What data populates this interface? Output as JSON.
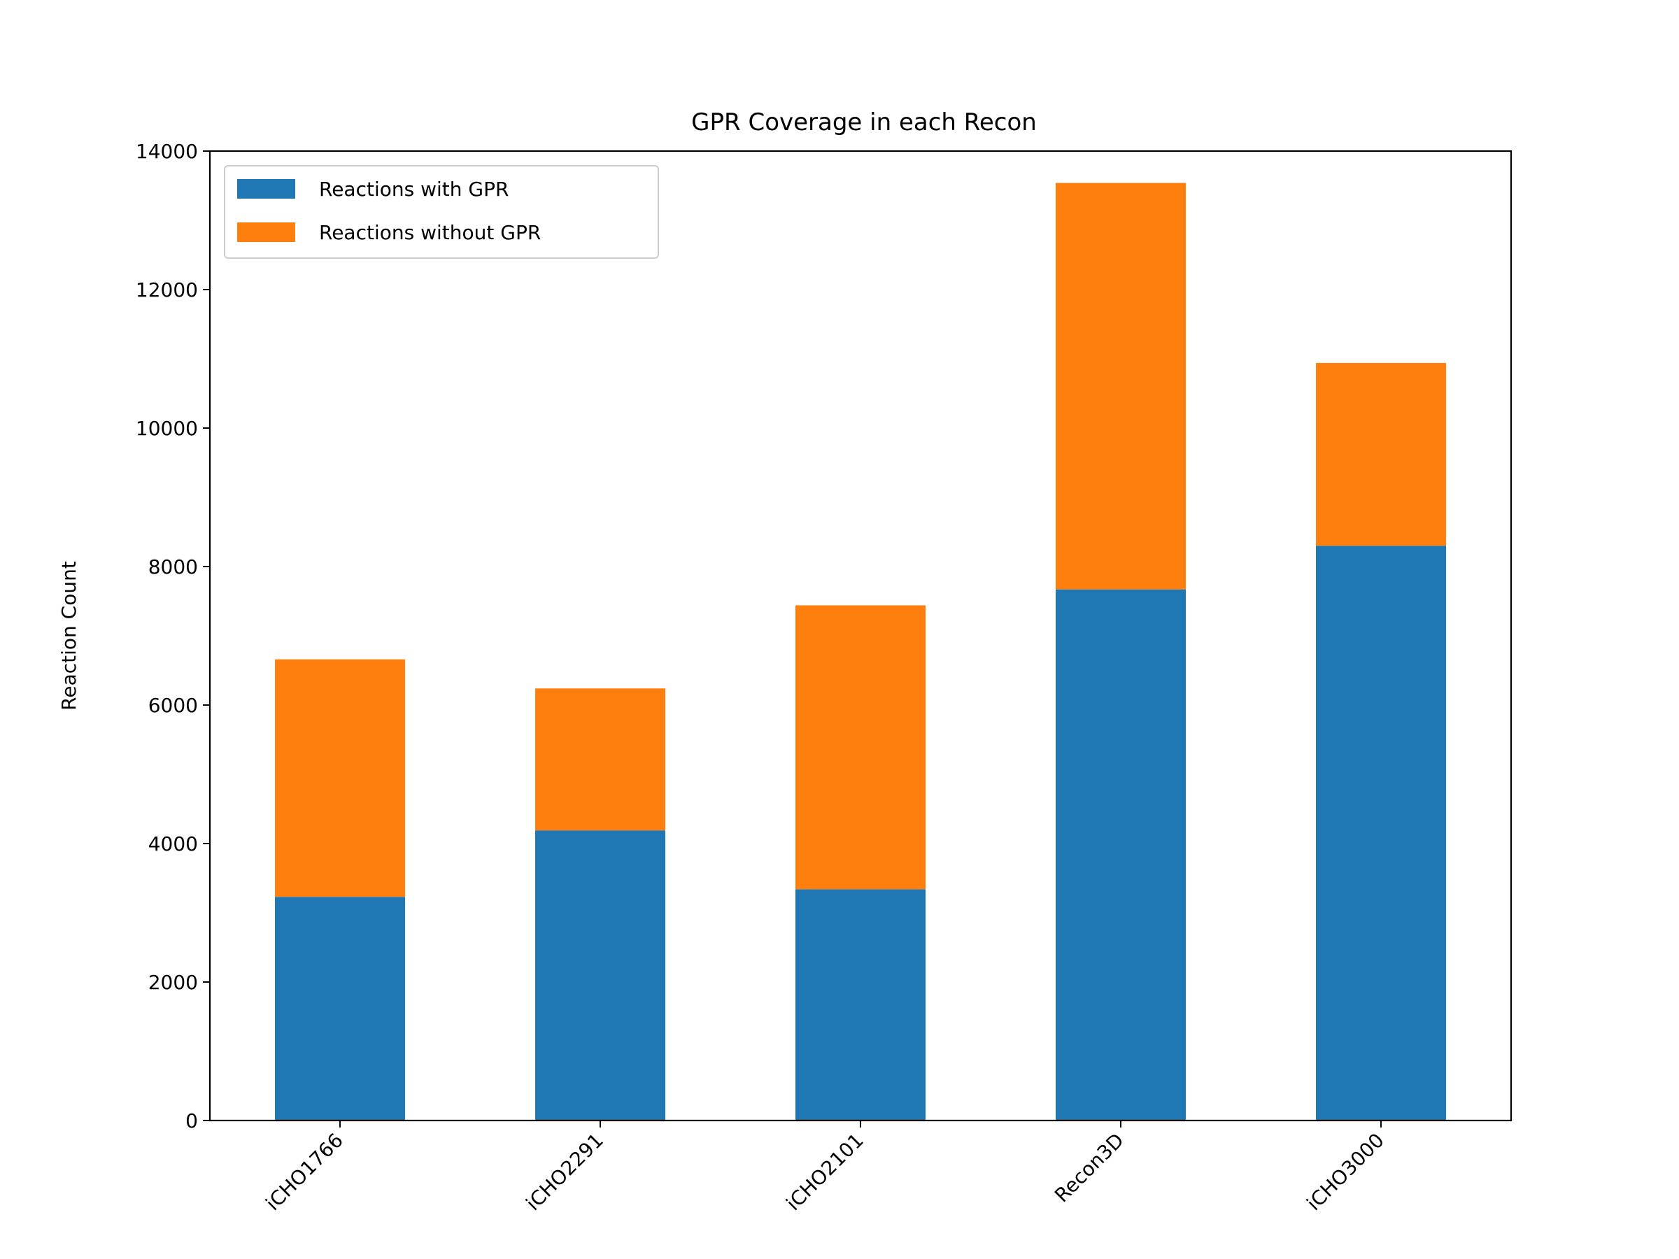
{
  "chart_data": {
    "type": "bar",
    "stacked": true,
    "title": "GPR Coverage in each Recon",
    "xlabel": "",
    "ylabel": "Reaction Count",
    "categories": [
      "iCHO1766",
      "iCHO2291",
      "iCHO2101",
      "Recon3D",
      "iCHO3000"
    ],
    "series": [
      {
        "name": "Reactions with GPR",
        "color": "#1f77b4",
        "values": [
          3230,
          4190,
          3340,
          7670,
          8300
        ]
      },
      {
        "name": "Reactions without GPR",
        "color": "#ff7f0e",
        "values": [
          3430,
          2050,
          4100,
          5870,
          2640
        ]
      }
    ],
    "ylim": [
      0,
      14000
    ],
    "yticks": [
      0,
      2000,
      4000,
      6000,
      8000,
      10000,
      12000,
      14000
    ],
    "ytick_labels": [
      "0",
      "2000",
      "4000",
      "6000",
      "8000",
      "10000",
      "12000",
      "14000"
    ],
    "xtick_rotation_deg": 45,
    "grid": false,
    "legend_position": "upper left"
  }
}
